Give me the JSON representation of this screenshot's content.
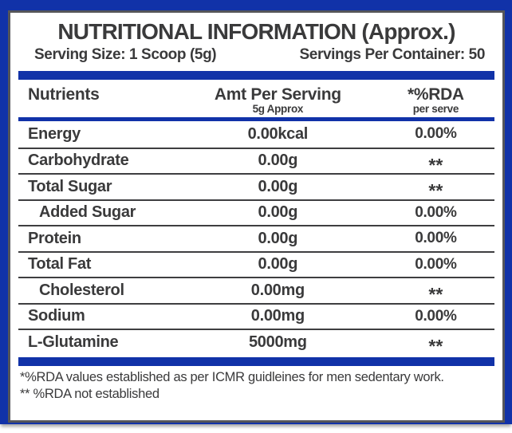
{
  "label": {
    "title": "NUTRITIONAL INFORMATION (Approx.)",
    "serving_size": "Serving Size: 1 Scoop (5g)",
    "servings_per_container": "Servings Per Container: 50",
    "columns": {
      "nutrients": "Nutrients",
      "amt": "Amt Per Serving",
      "amt_sub": "5g Approx",
      "rda": "*%RDA",
      "rda_sub": "per serve"
    },
    "rows": [
      {
        "name": "Energy",
        "amt": "0.00kcal",
        "rda": "0.00%",
        "indent": false
      },
      {
        "name": "Carbohydrate",
        "amt": "0.00g",
        "rda": "**",
        "indent": false
      },
      {
        "name": "Total Sugar",
        "amt": "0.00g",
        "rda": "**",
        "indent": false
      },
      {
        "name": "Added Sugar",
        "amt": "0.00g",
        "rda": "0.00%",
        "indent": true
      },
      {
        "name": "Protein",
        "amt": "0.00g",
        "rda": "0.00%",
        "indent": false
      },
      {
        "name": "Total Fat",
        "amt": "0.00g",
        "rda": "0.00%",
        "indent": false
      },
      {
        "name": "Cholesterol",
        "amt": "0.00mg",
        "rda": "**",
        "indent": true
      },
      {
        "name": "Sodium",
        "amt": "0.00mg",
        "rda": "0.00%",
        "indent": false
      },
      {
        "name": "L-Glutamine",
        "amt": "5000mg",
        "rda": "**",
        "indent": false
      }
    ],
    "footnotes": [
      "*%RDA values established as per ICMR guidleines for men sedentary work.",
      "** %RDA not established"
    ],
    "colors": {
      "accent_blue": "#1132a8",
      "frame_gray": "#55565a",
      "text": "#3a3a3b",
      "row_line": "#3e3e40"
    }
  }
}
